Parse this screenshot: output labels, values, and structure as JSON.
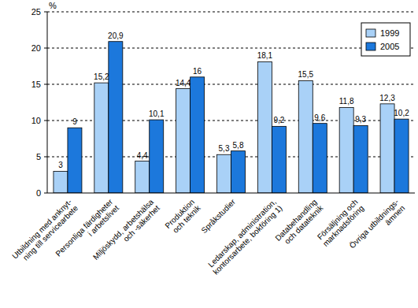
{
  "chart_data": {
    "type": "bar",
    "y_label": "%",
    "categories": [
      "Utbildning med anknyt-\nning till servicearbete",
      "Personliga färdigheter\ni arbetslivet",
      "Miljöskydd, arbetshälsa\noch -säkerhet",
      "Produktion\noch teknik",
      "Språkstudier",
      "Ledarskap, administration,\nkontorsarbete, bokföring 1)",
      "Databehandling\noch datateknik",
      "Försäljning och\nmarknadsföring",
      "Övriga utbildnings-\nämnen"
    ],
    "series": [
      {
        "name": "1999",
        "color": "#a9d1f7",
        "values": [
          3,
          15.2,
          4.4,
          14.4,
          5.3,
          18.1,
          15.5,
          11.8,
          12.3
        ],
        "value_labels": [
          "3",
          "15,2",
          "4,4",
          "14,4",
          "5,3",
          "18,1",
          "15,5",
          "11,8",
          "12,3"
        ]
      },
      {
        "name": "2005",
        "color": "#1c78dc",
        "values": [
          9,
          20.9,
          10.1,
          16,
          5.8,
          9.2,
          9.6,
          9.3,
          10.2
        ],
        "value_labels": [
          "9",
          "20,9",
          "10,1",
          "16",
          "5,8",
          "9,2",
          "9,6",
          "9,3",
          "10,2"
        ]
      }
    ],
    "ylim": [
      0,
      25
    ],
    "yticks": [
      0,
      5,
      10,
      15,
      20,
      25
    ],
    "grid": true,
    "legend": "top-right",
    "data_labels": true
  }
}
